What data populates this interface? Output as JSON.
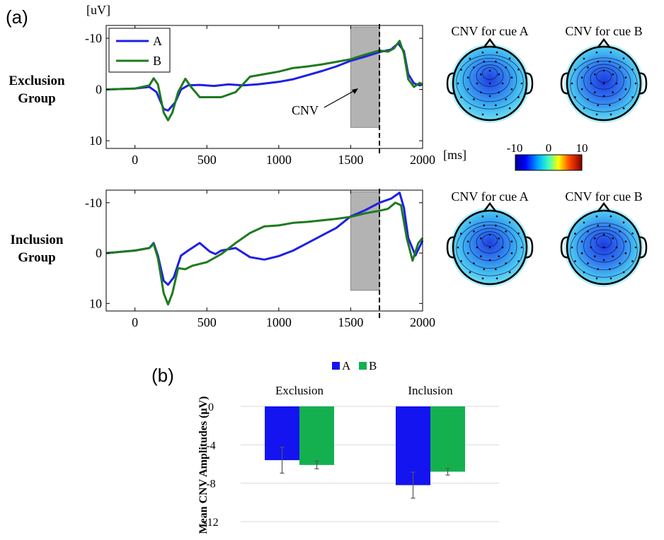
{
  "panel_labels": {
    "a": "(a)",
    "b": "(b)"
  },
  "units": {
    "y": "[uV]",
    "x": "[ms]"
  },
  "groups": [
    {
      "label_line1": "Exclusion",
      "label_line2": "Group"
    },
    {
      "label_line1": "Inclusion",
      "label_line2": "Group"
    }
  ],
  "cnv_annotation": "CNV",
  "topo_titles": [
    "CNV for cue A",
    "CNV for cue B",
    "CNV for cue A",
    "CNV for cue B"
  ],
  "colorbar": {
    "min": -10,
    "mid": 0,
    "max": 10,
    "labels": [
      "-10",
      "0",
      "10"
    ]
  },
  "colors": {
    "A": "#1f1fe6",
    "B": "#1e7a1e",
    "barA": "#1414f0",
    "barB": "#14b050",
    "shade": "#b3b3b3"
  },
  "chart_data": [
    {
      "type": "line",
      "group": "Exclusion",
      "x_ticks": [
        0,
        500,
        1000,
        1500,
        2000
      ],
      "y_ticks": [
        -10,
        0,
        10
      ],
      "xlim": [
        -200,
        2000
      ],
      "ylim": [
        -12.5,
        11.5
      ],
      "y_inverted": true,
      "legend": [
        "A",
        "B"
      ],
      "legend_position": "top-left",
      "shaded_window": [
        1500,
        1700
      ],
      "cue_line_x": 1700,
      "series": [
        {
          "name": "A",
          "color": "#1f1fe6",
          "points": [
            [
              -200,
              0
            ],
            [
              0,
              -0.2
            ],
            [
              100,
              -0.5
            ],
            [
              150,
              0.5
            ],
            [
              200,
              3.8
            ],
            [
              230,
              4.1
            ],
            [
              280,
              2.5
            ],
            [
              320,
              0
            ],
            [
              370,
              -0.8
            ],
            [
              450,
              -0.9
            ],
            [
              550,
              -0.7
            ],
            [
              650,
              -1.0
            ],
            [
              750,
              -0.8
            ],
            [
              850,
              -1.0
            ],
            [
              1000,
              -1.5
            ],
            [
              1100,
              -2.0
            ],
            [
              1200,
              -2.8
            ],
            [
              1300,
              -3.6
            ],
            [
              1400,
              -4.5
            ],
            [
              1500,
              -5.6
            ],
            [
              1600,
              -6.4
            ],
            [
              1700,
              -7.3
            ],
            [
              1780,
              -7.8
            ],
            [
              1830,
              -9.0
            ],
            [
              1870,
              -7.5
            ],
            [
              1900,
              -3.0
            ],
            [
              1940,
              -1.2
            ],
            [
              1980,
              -0.8
            ],
            [
              2000,
              -1.0
            ]
          ]
        },
        {
          "name": "B",
          "color": "#1e7a1e",
          "points": [
            [
              -200,
              0
            ],
            [
              0,
              -0.2
            ],
            [
              100,
              -0.8
            ],
            [
              130,
              -2.2
            ],
            [
              160,
              -1.0
            ],
            [
              200,
              4.5
            ],
            [
              230,
              6.0
            ],
            [
              260,
              4.5
            ],
            [
              300,
              0.5
            ],
            [
              350,
              -2.1
            ],
            [
              390,
              -0.5
            ],
            [
              450,
              1.5
            ],
            [
              500,
              1.5
            ],
            [
              600,
              1.5
            ],
            [
              700,
              0.5
            ],
            [
              800,
              -2.5
            ],
            [
              900,
              -3.0
            ],
            [
              1000,
              -3.5
            ],
            [
              1100,
              -4.2
            ],
            [
              1200,
              -4.5
            ],
            [
              1300,
              -4.9
            ],
            [
              1400,
              -5.4
            ],
            [
              1500,
              -5.9
            ],
            [
              1600,
              -6.8
            ],
            [
              1700,
              -7.6
            ],
            [
              1760,
              -7.4
            ],
            [
              1800,
              -8.0
            ],
            [
              1840,
              -9.5
            ],
            [
              1870,
              -7.0
            ],
            [
              1900,
              -2.0
            ],
            [
              1940,
              -0.5
            ],
            [
              1980,
              -1.3
            ],
            [
              2000,
              -1.0
            ]
          ]
        }
      ]
    },
    {
      "type": "line",
      "group": "Inclusion",
      "x_ticks": [
        0,
        500,
        1000,
        1500,
        2000
      ],
      "y_ticks": [
        -10,
        0,
        10
      ],
      "xlim": [
        -200,
        2000
      ],
      "ylim": [
        -12.5,
        11.5
      ],
      "y_inverted": true,
      "shaded_window": [
        1500,
        1700
      ],
      "cue_line_x": 1700,
      "series": [
        {
          "name": "A",
          "color": "#1f1fe6",
          "points": [
            [
              -200,
              0
            ],
            [
              0,
              -0.5
            ],
            [
              100,
              -1.0
            ],
            [
              130,
              -2.0
            ],
            [
              160,
              0.5
            ],
            [
              200,
              5.5
            ],
            [
              230,
              6.3
            ],
            [
              270,
              4.8
            ],
            [
              320,
              0.5
            ],
            [
              370,
              -0.5
            ],
            [
              450,
              -2.0
            ],
            [
              520,
              -0.3
            ],
            [
              560,
              0.2
            ],
            [
              600,
              -0.5
            ],
            [
              700,
              -1.0
            ],
            [
              800,
              0.8
            ],
            [
              900,
              1.3
            ],
            [
              1000,
              0.6
            ],
            [
              1100,
              -0.5
            ],
            [
              1200,
              -2.0
            ],
            [
              1300,
              -3.5
            ],
            [
              1400,
              -5.0
            ],
            [
              1500,
              -7.3
            ],
            [
              1600,
              -8.5
            ],
            [
              1700,
              -10.0
            ],
            [
              1780,
              -10.8
            ],
            [
              1840,
              -12.0
            ],
            [
              1870,
              -9.0
            ],
            [
              1900,
              -3.0
            ],
            [
              1950,
              0.5
            ],
            [
              2000,
              -2.5
            ]
          ]
        },
        {
          "name": "B",
          "color": "#1e7a1e",
          "points": [
            [
              -200,
              0
            ],
            [
              0,
              -0.5
            ],
            [
              100,
              -1.0
            ],
            [
              130,
              -1.8
            ],
            [
              160,
              1.0
            ],
            [
              200,
              8.0
            ],
            [
              230,
              10.2
            ],
            [
              260,
              8.0
            ],
            [
              300,
              3.0
            ],
            [
              350,
              3.2
            ],
            [
              400,
              2.5
            ],
            [
              500,
              1.8
            ],
            [
              600,
              0.2
            ],
            [
              700,
              -2.0
            ],
            [
              800,
              -4.0
            ],
            [
              900,
              -5.3
            ],
            [
              1000,
              -5.5
            ],
            [
              1100,
              -6.0
            ],
            [
              1200,
              -6.2
            ],
            [
              1300,
              -6.5
            ],
            [
              1400,
              -6.8
            ],
            [
              1500,
              -7.2
            ],
            [
              1600,
              -7.9
            ],
            [
              1700,
              -8.4
            ],
            [
              1760,
              -8.8
            ],
            [
              1810,
              -10.0
            ],
            [
              1850,
              -9.5
            ],
            [
              1890,
              -3.0
            ],
            [
              1930,
              1.5
            ],
            [
              1970,
              -2.0
            ],
            [
              2000,
              -3.0
            ]
          ]
        }
      ]
    },
    {
      "type": "bar",
      "categories": [
        "Exclusion",
        "Inclusion"
      ],
      "ylabel": "Mean CNV Amplitudes (μV)",
      "y_ticks": [
        0,
        -4,
        -8,
        -12
      ],
      "ylim": [
        -12,
        0
      ],
      "legend": [
        "A",
        "B"
      ],
      "legend_position": "top-center",
      "grid": true,
      "series": [
        {
          "name": "A",
          "color": "#1414f0",
          "values": [
            -5.6,
            -8.2
          ],
          "error": [
            1.35,
            1.35
          ]
        },
        {
          "name": "B",
          "color": "#14b050",
          "values": [
            -6.1,
            -6.8
          ],
          "error": [
            0.4,
            0.35
          ]
        }
      ]
    }
  ]
}
